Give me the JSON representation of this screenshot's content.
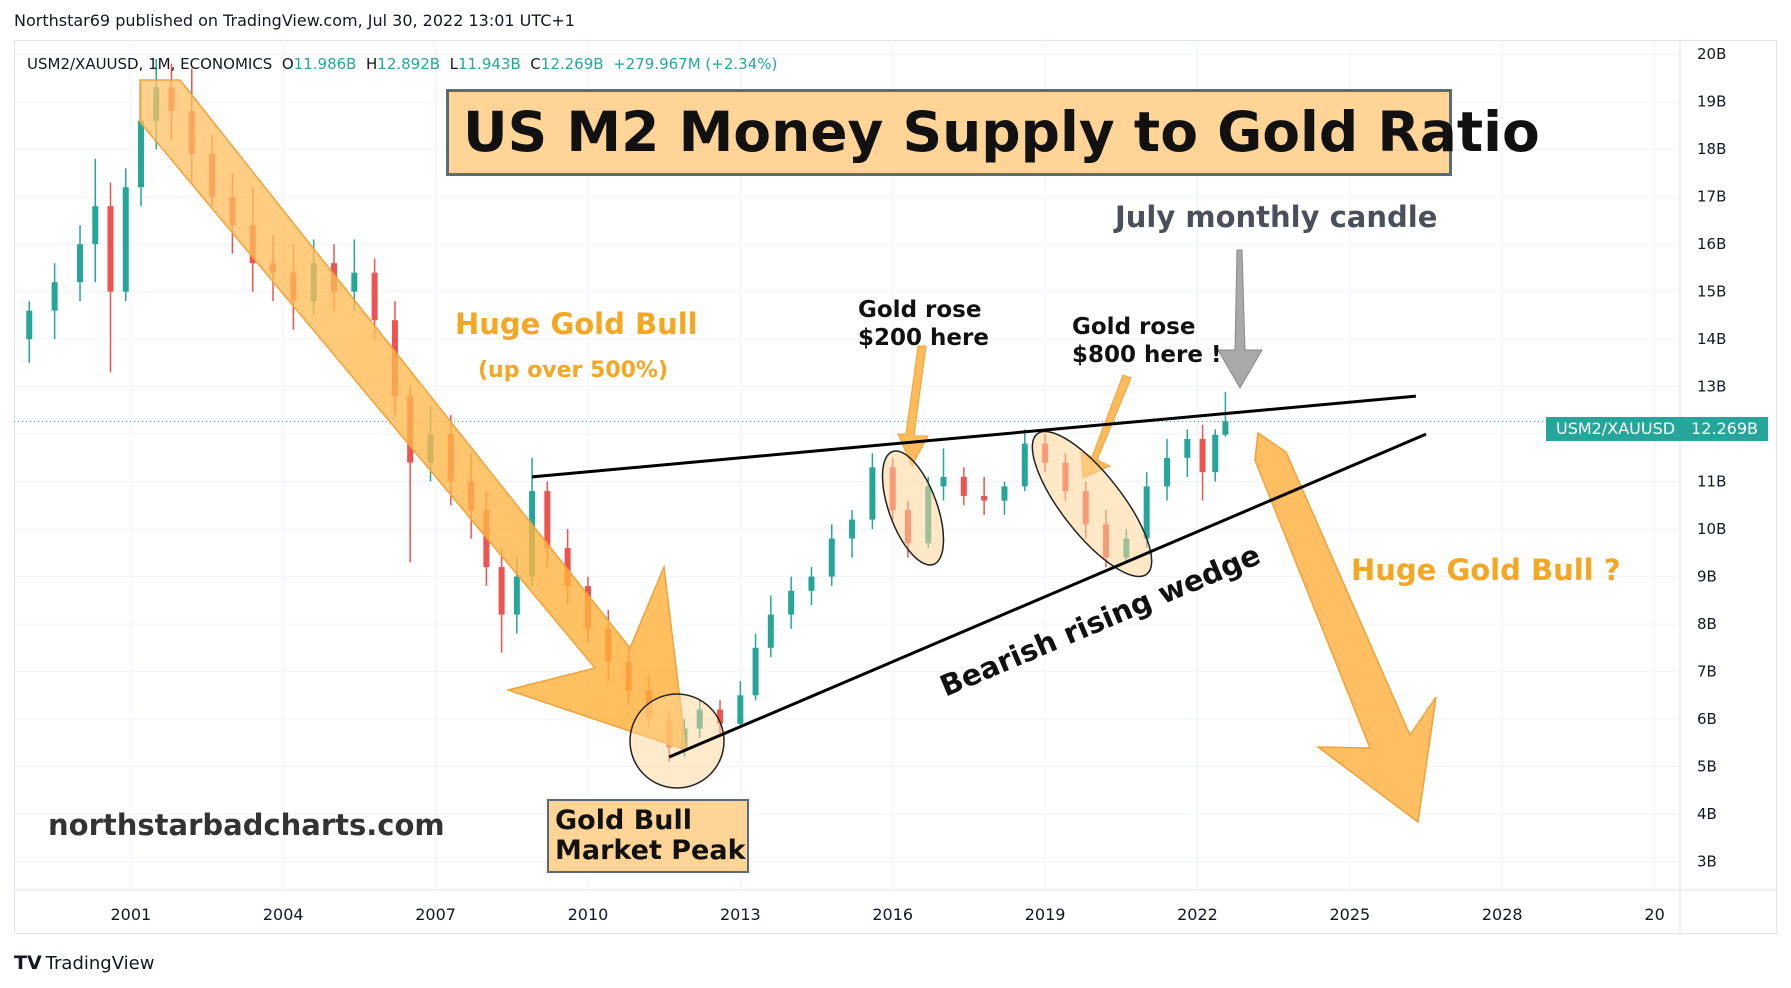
{
  "header": {
    "publish_line": "Northstar69 published on TradingView.com, Jul 30, 2022 13:01 UTC+1"
  },
  "legend": {
    "symbol": "USM2/XAUUSD, 1M, ECONOMICS",
    "o_label": "O",
    "o_value": "11.986B",
    "h_label": "H",
    "h_value": "12.892B",
    "l_label": "L",
    "l_value": "11.943B",
    "c_label": "C",
    "c_value": "12.269B",
    "change": "+279.967M (+2.34%)"
  },
  "price_tag": {
    "symbol": "USM2/XAUUSD",
    "value": "12.269B"
  },
  "annotations": {
    "title": "US M2 Money Supply to Gold Ratio",
    "july": "July monthly candle",
    "bull": "Huge Gold Bull",
    "bull_sub": "(up over 500%)",
    "rose200_l1": "Gold rose",
    "rose200_l2": "$200 here",
    "rose800_l1": "Gold rose",
    "rose800_l2": "$800 here !",
    "bull_q": "Huge Gold Bull ?",
    "wedge": "Bearish rising wedge",
    "website": "northstarbadcharts.com",
    "peak_l1": "Gold Bull",
    "peak_l2": "Market Peak"
  },
  "footer": {
    "logo_mark": "TV",
    "brand": "TradingView"
  },
  "chart_data": {
    "type": "candlestick",
    "series_name": "USM2/XAUUSD",
    "x_axis": {
      "ticks": [
        "2001",
        "2004",
        "2007",
        "2010",
        "2013",
        "2016",
        "2019",
        "2022",
        "2025",
        "2028",
        "20"
      ],
      "range": [
        1998.7,
        2031.5
      ]
    },
    "y_axis": {
      "ticks": [
        "20B",
        "19B",
        "18B",
        "17B",
        "16B",
        "15B",
        "14B",
        "13B",
        "12B",
        "11B",
        "10B",
        "9B",
        "8B",
        "7B",
        "6B",
        "5B",
        "4B",
        "3B"
      ],
      "range": [
        2.4,
        20.3
      ],
      "unit": "B"
    },
    "last_value": 12.269,
    "grid": true,
    "colors": {
      "up": "#26a69a",
      "down": "#ef5350",
      "annotation": "#f5a623",
      "annotation_fill": "#ffd597",
      "price_tag": "#26a69a"
    },
    "candles": [
      {
        "t": 1999.0,
        "o": 14.0,
        "h": 14.8,
        "l": 13.5,
        "c": 14.6
      },
      {
        "t": 1999.5,
        "o": 14.6,
        "h": 15.6,
        "l": 14.0,
        "c": 15.2
      },
      {
        "t": 2000.0,
        "o": 15.2,
        "h": 16.4,
        "l": 14.8,
        "c": 16.0
      },
      {
        "t": 2000.3,
        "o": 16.0,
        "h": 17.8,
        "l": 15.2,
        "c": 16.8
      },
      {
        "t": 2000.6,
        "o": 16.8,
        "h": 17.3,
        "l": 13.3,
        "c": 15.0
      },
      {
        "t": 2000.9,
        "o": 15.0,
        "h": 17.6,
        "l": 14.8,
        "c": 17.2
      },
      {
        "t": 2001.2,
        "o": 17.2,
        "h": 19.4,
        "l": 16.8,
        "c": 18.6
      },
      {
        "t": 2001.5,
        "o": 18.6,
        "h": 19.9,
        "l": 18.0,
        "c": 19.3
      },
      {
        "t": 2001.8,
        "o": 19.3,
        "h": 19.8,
        "l": 18.2,
        "c": 18.8
      },
      {
        "t": 2002.2,
        "o": 18.8,
        "h": 19.7,
        "l": 17.3,
        "c": 17.9
      },
      {
        "t": 2002.6,
        "o": 17.9,
        "h": 18.3,
        "l": 16.8,
        "c": 17.0
      },
      {
        "t": 2003.0,
        "o": 17.0,
        "h": 17.5,
        "l": 15.8,
        "c": 16.4
      },
      {
        "t": 2003.4,
        "o": 16.4,
        "h": 17.2,
        "l": 15.0,
        "c": 15.6
      },
      {
        "t": 2003.8,
        "o": 15.6,
        "h": 16.2,
        "l": 14.8,
        "c": 15.4
      },
      {
        "t": 2004.2,
        "o": 15.4,
        "h": 16.0,
        "l": 14.2,
        "c": 14.8
      },
      {
        "t": 2004.6,
        "o": 14.8,
        "h": 16.1,
        "l": 14.5,
        "c": 15.6
      },
      {
        "t": 2005.0,
        "o": 15.6,
        "h": 16.0,
        "l": 14.6,
        "c": 15.0
      },
      {
        "t": 2005.4,
        "o": 15.0,
        "h": 16.1,
        "l": 14.6,
        "c": 15.4
      },
      {
        "t": 2005.8,
        "o": 15.4,
        "h": 15.7,
        "l": 14.0,
        "c": 14.4
      },
      {
        "t": 2006.2,
        "o": 14.4,
        "h": 14.8,
        "l": 12.4,
        "c": 12.8
      },
      {
        "t": 2006.5,
        "o": 12.8,
        "h": 13.0,
        "l": 9.3,
        "c": 11.4
      },
      {
        "t": 2006.9,
        "o": 11.4,
        "h": 12.6,
        "l": 11.0,
        "c": 12.0
      },
      {
        "t": 2007.3,
        "o": 12.0,
        "h": 12.4,
        "l": 10.5,
        "c": 11.0
      },
      {
        "t": 2007.7,
        "o": 11.0,
        "h": 11.6,
        "l": 9.8,
        "c": 10.4
      },
      {
        "t": 2008.0,
        "o": 10.4,
        "h": 10.8,
        "l": 8.8,
        "c": 9.2
      },
      {
        "t": 2008.3,
        "o": 9.2,
        "h": 9.6,
        "l": 7.4,
        "c": 8.2
      },
      {
        "t": 2008.6,
        "o": 8.2,
        "h": 9.4,
        "l": 7.8,
        "c": 9.0
      },
      {
        "t": 2008.9,
        "o": 9.0,
        "h": 11.5,
        "l": 8.8,
        "c": 10.8
      },
      {
        "t": 2009.2,
        "o": 10.8,
        "h": 11.0,
        "l": 9.2,
        "c": 9.6
      },
      {
        "t": 2009.6,
        "o": 9.6,
        "h": 10.0,
        "l": 8.4,
        "c": 8.8
      },
      {
        "t": 2010.0,
        "o": 8.8,
        "h": 9.0,
        "l": 7.6,
        "c": 7.9
      },
      {
        "t": 2010.4,
        "o": 7.9,
        "h": 8.3,
        "l": 6.8,
        "c": 7.2
      },
      {
        "t": 2010.8,
        "o": 7.2,
        "h": 7.5,
        "l": 6.3,
        "c": 6.6
      },
      {
        "t": 2011.2,
        "o": 6.6,
        "h": 6.9,
        "l": 5.8,
        "c": 6.0
      },
      {
        "t": 2011.6,
        "o": 6.0,
        "h": 6.2,
        "l": 5.1,
        "c": 5.4
      },
      {
        "t": 2011.9,
        "o": 5.4,
        "h": 6.0,
        "l": 5.2,
        "c": 5.8
      },
      {
        "t": 2012.2,
        "o": 5.8,
        "h": 6.4,
        "l": 5.6,
        "c": 6.2
      },
      {
        "t": 2012.6,
        "o": 6.2,
        "h": 6.4,
        "l": 5.7,
        "c": 5.9
      },
      {
        "t": 2013.0,
        "o": 5.9,
        "h": 6.8,
        "l": 5.8,
        "c": 6.5
      },
      {
        "t": 2013.3,
        "o": 6.5,
        "h": 7.8,
        "l": 6.4,
        "c": 7.5
      },
      {
        "t": 2013.6,
        "o": 7.5,
        "h": 8.6,
        "l": 7.3,
        "c": 8.2
      },
      {
        "t": 2014.0,
        "o": 8.2,
        "h": 9.0,
        "l": 7.9,
        "c": 8.7
      },
      {
        "t": 2014.4,
        "o": 8.7,
        "h": 9.2,
        "l": 8.4,
        "c": 9.0
      },
      {
        "t": 2014.8,
        "o": 9.0,
        "h": 10.1,
        "l": 8.8,
        "c": 9.8
      },
      {
        "t": 2015.2,
        "o": 9.8,
        "h": 10.4,
        "l": 9.4,
        "c": 10.2
      },
      {
        "t": 2015.6,
        "o": 10.2,
        "h": 11.6,
        "l": 10.0,
        "c": 11.3
      },
      {
        "t": 2016.0,
        "o": 11.3,
        "h": 11.5,
        "l": 10.2,
        "c": 10.4
      },
      {
        "t": 2016.3,
        "o": 10.4,
        "h": 10.6,
        "l": 9.4,
        "c": 9.7
      },
      {
        "t": 2016.7,
        "o": 9.7,
        "h": 11.1,
        "l": 9.6,
        "c": 10.9
      },
      {
        "t": 2017.0,
        "o": 10.9,
        "h": 11.7,
        "l": 10.6,
        "c": 11.1
      },
      {
        "t": 2017.4,
        "o": 11.1,
        "h": 11.3,
        "l": 10.5,
        "c": 10.7
      },
      {
        "t": 2017.8,
        "o": 10.7,
        "h": 11.1,
        "l": 10.3,
        "c": 10.6
      },
      {
        "t": 2018.2,
        "o": 10.6,
        "h": 11.0,
        "l": 10.3,
        "c": 10.9
      },
      {
        "t": 2018.6,
        "o": 10.9,
        "h": 12.1,
        "l": 10.8,
        "c": 11.8
      },
      {
        "t": 2019.0,
        "o": 11.8,
        "h": 12.0,
        "l": 11.2,
        "c": 11.4
      },
      {
        "t": 2019.4,
        "o": 11.4,
        "h": 11.6,
        "l": 10.6,
        "c": 10.8
      },
      {
        "t": 2019.8,
        "o": 10.8,
        "h": 11.0,
        "l": 9.8,
        "c": 10.1
      },
      {
        "t": 2020.2,
        "o": 10.1,
        "h": 10.4,
        "l": 9.2,
        "c": 9.4
      },
      {
        "t": 2020.6,
        "o": 9.4,
        "h": 10.0,
        "l": 9.3,
        "c": 9.8
      },
      {
        "t": 2021.0,
        "o": 9.8,
        "h": 11.2,
        "l": 9.6,
        "c": 10.9
      },
      {
        "t": 2021.4,
        "o": 10.9,
        "h": 11.9,
        "l": 10.6,
        "c": 11.5
      },
      {
        "t": 2021.8,
        "o": 11.5,
        "h": 12.1,
        "l": 11.1,
        "c": 11.9
      },
      {
        "t": 2022.1,
        "o": 11.9,
        "h": 12.2,
        "l": 10.6,
        "c": 11.2
      },
      {
        "t": 2022.35,
        "o": 11.2,
        "h": 12.1,
        "l": 11.0,
        "c": 11.986
      },
      {
        "t": 2022.55,
        "o": 11.986,
        "h": 12.892,
        "l": 11.943,
        "c": 12.269
      }
    ],
    "trendlines": [
      {
        "name": "wedge-upper",
        "x1": 2008.9,
        "y1": 11.1,
        "x2": 2026.3,
        "y2": 12.8
      },
      {
        "name": "wedge-lower",
        "x1": 2011.6,
        "y1": 5.2,
        "x2": 2026.5,
        "y2": 12.0
      }
    ]
  }
}
